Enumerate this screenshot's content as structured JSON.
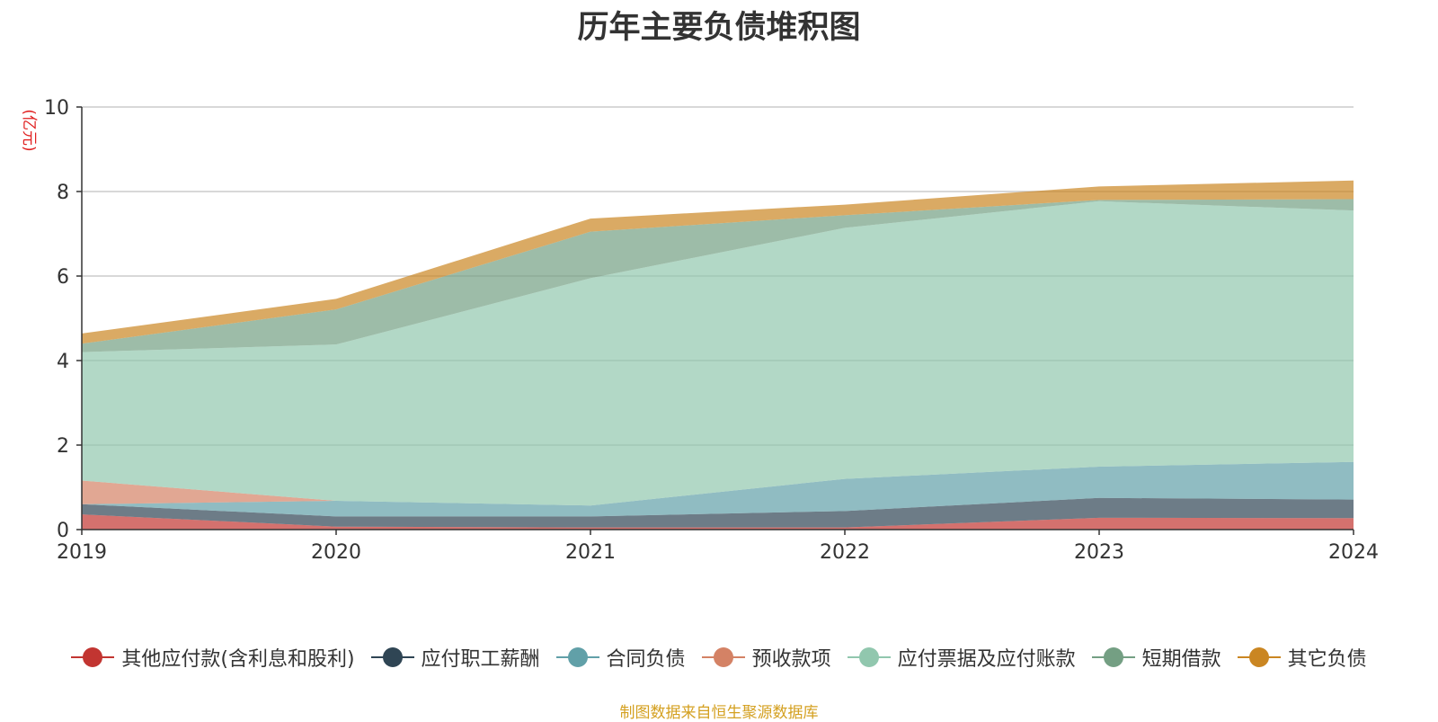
{
  "chart_data": {
    "type": "area",
    "title": "历年主要负债堆积图",
    "ylabel": "(亿元)",
    "xlabel": "",
    "stacked": true,
    "x": [
      "2019",
      "2020",
      "2021",
      "2022",
      "2023",
      "2024"
    ],
    "ylim": [
      0,
      10
    ],
    "yticks": [
      "0",
      "2",
      "4",
      "6",
      "8",
      "10"
    ],
    "grid": true,
    "legend_position": "bottom",
    "series": [
      {
        "name": "其他应付款(含利息和股利)",
        "color": "#c23531",
        "values": [
          0.36,
          0.07,
          0.05,
          0.05,
          0.28,
          0.27
        ]
      },
      {
        "name": "应付职工薪酬",
        "color": "#2f4554",
        "values": [
          0.24,
          0.24,
          0.26,
          0.39,
          0.47,
          0.44
        ]
      },
      {
        "name": "合同负债",
        "color": "#61a0a8",
        "values": [
          0.0,
          0.37,
          0.26,
          0.76,
          0.74,
          0.89
        ]
      },
      {
        "name": "预收款项",
        "color": "#d48265",
        "values": [
          0.56,
          0.0,
          0.0,
          0.0,
          0.0,
          0.0
        ]
      },
      {
        "name": "应付票据及应付账款",
        "color": "#91c7ae",
        "values": [
          3.04,
          3.7,
          5.38,
          5.94,
          6.28,
          5.95
        ]
      },
      {
        "name": "短期借款",
        "color": "#749f83",
        "values": [
          0.2,
          0.83,
          1.1,
          0.3,
          0.03,
          0.27
        ]
      },
      {
        "name": "其它负债",
        "color": "#ca8622",
        "values": [
          0.24,
          0.25,
          0.31,
          0.25,
          0.32,
          0.44
        ]
      }
    ]
  },
  "source_note": "制图数据来自恒生聚源数据库"
}
